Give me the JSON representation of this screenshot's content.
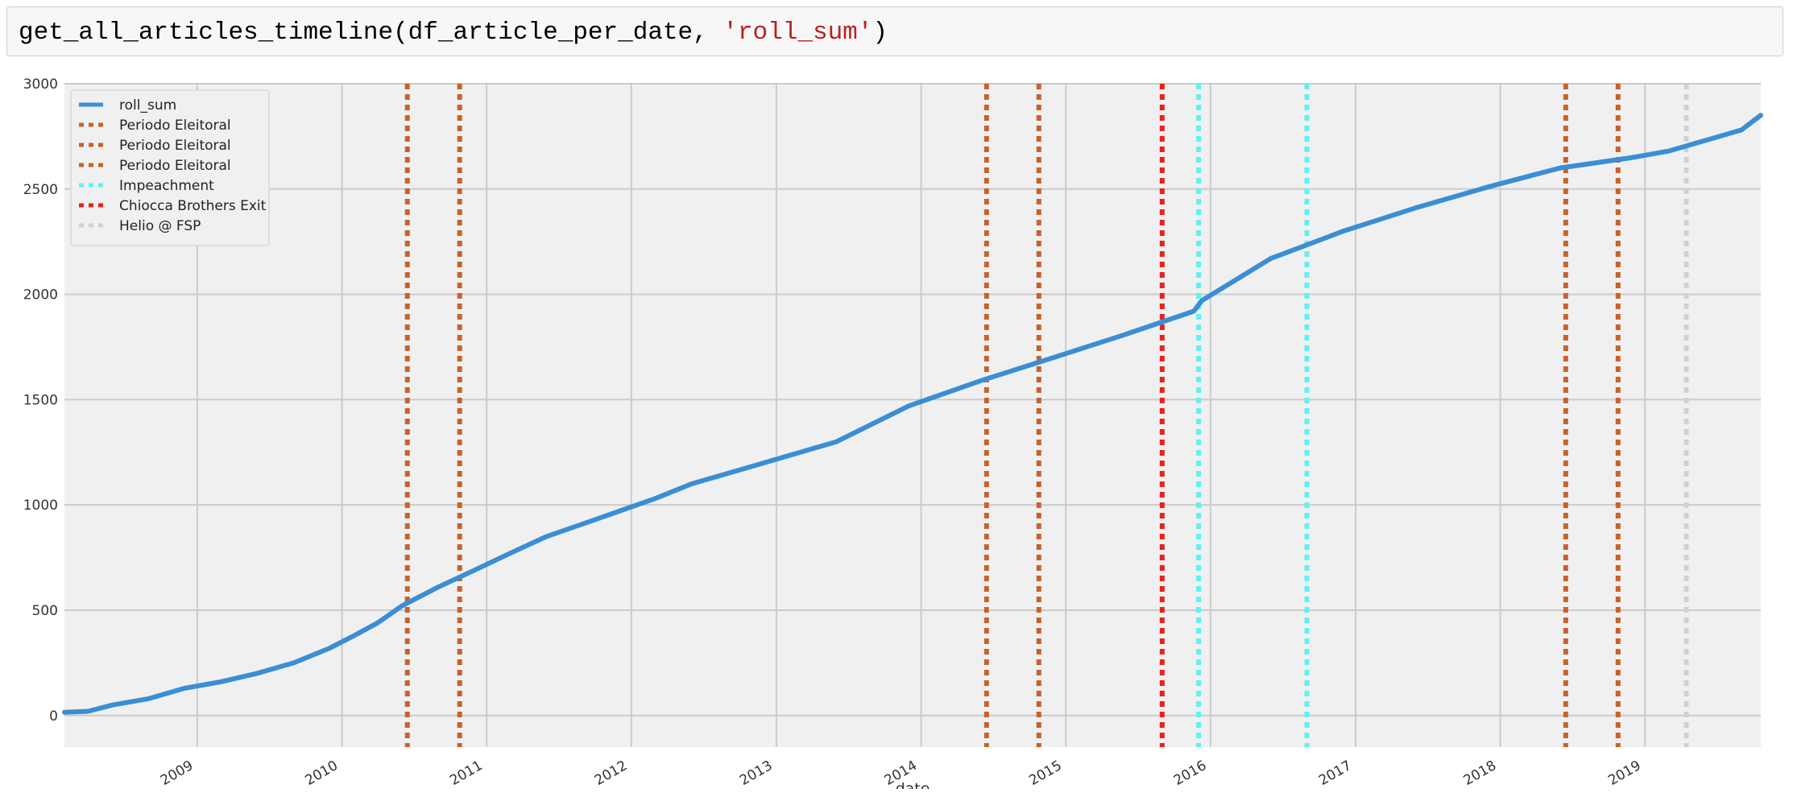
{
  "code_cell": {
    "call_prefix": "get_all_articles_timeline(df_article_per_date, ",
    "arg_string": "'roll_sum'",
    "call_suffix": ")"
  },
  "colors": {
    "plot_background": "#f0f0f0",
    "grid": "#cbcbcb",
    "series": "#3a8ed4",
    "periodo_eleitoral": "#c8622b",
    "impeachment": "#5ff2f2",
    "chiocca_brothers_exit": "#e8221c",
    "helio_fsp": "#d1d1d1"
  },
  "chart_data": {
    "type": "line",
    "title": "",
    "xlabel": "date",
    "ylabel": "",
    "xlim": [
      "2008-02-01",
      "2019-10-20"
    ],
    "ylim": [
      -150,
      3000
    ],
    "grid": true,
    "legend_position": "top-left",
    "x_ticks": [
      "2009-01-01",
      "2010-01-01",
      "2011-01-01",
      "2012-01-01",
      "2013-01-01",
      "2014-01-01",
      "2015-01-01",
      "2016-01-01",
      "2017-01-01",
      "2018-01-01",
      "2019-01-01"
    ],
    "x_tick_labels": [
      "2009",
      "2010",
      "2011",
      "2012",
      "2013",
      "2014",
      "2015",
      "2016",
      "2017",
      "2018",
      "2019"
    ],
    "y_ticks": [
      0,
      500,
      1000,
      1500,
      2000,
      2500,
      3000
    ],
    "y_tick_labels": [
      "0",
      "500",
      "1000",
      "1500",
      "2000",
      "2500",
      "3000"
    ],
    "series": [
      {
        "name": "roll_sum",
        "x": [
          "2008-02-01",
          "2008-04-01",
          "2008-06-01",
          "2008-09-01",
          "2008-12-01",
          "2009-03-01",
          "2009-06-01",
          "2009-09-01",
          "2009-12-01",
          "2010-02-01",
          "2010-04-01",
          "2010-06-01",
          "2010-09-01",
          "2010-12-01",
          "2011-03-01",
          "2011-06-01",
          "2011-09-01",
          "2011-12-01",
          "2012-03-01",
          "2012-06-01",
          "2012-09-01",
          "2012-12-01",
          "2013-06-01",
          "2013-12-01",
          "2014-06-01",
          "2014-12-01",
          "2015-06-01",
          "2015-11-20",
          "2015-12-10",
          "2016-06-01",
          "2016-12-01",
          "2017-06-01",
          "2017-12-01",
          "2018-06-01",
          "2018-12-01",
          "2019-03-01",
          "2019-06-01",
          "2019-09-01",
          "2019-10-20"
        ],
        "values": [
          15,
          20,
          50,
          80,
          130,
          160,
          200,
          250,
          320,
          380,
          440,
          520,
          610,
          690,
          770,
          850,
          910,
          970,
          1030,
          1100,
          1150,
          1200,
          1300,
          1470,
          1590,
          1700,
          1810,
          1920,
          1970,
          2170,
          2300,
          2410,
          2510,
          2600,
          2650,
          2680,
          2730,
          2780,
          2850
        ]
      }
    ],
    "markers": [
      {
        "name": "Periodo Eleitoral",
        "color": "#c8622b",
        "dates": [
          "2010-06-15",
          "2010-10-25"
        ]
      },
      {
        "name": "Periodo Eleitoral",
        "color": "#c8622b",
        "dates": [
          "2014-06-15",
          "2014-10-25"
        ]
      },
      {
        "name": "Periodo Eleitoral",
        "color": "#c8622b",
        "dates": [
          "2018-06-15",
          "2018-10-25"
        ]
      },
      {
        "name": "Impeachment",
        "color": "#5ff2f2",
        "dates": [
          "2015-12-02",
          "2016-08-31"
        ]
      },
      {
        "name": "Chiocca Brothers Exit",
        "color": "#e8221c",
        "dates": [
          "2015-09-01"
        ]
      },
      {
        "name": "Helio @ FSP",
        "color": "#d1d1d1",
        "dates": [
          "2019-04-15"
        ]
      }
    ],
    "legend": [
      {
        "label": "roll_sum",
        "color": "#3a8ed4",
        "style": "solid"
      },
      {
        "label": "Periodo Eleitoral",
        "color": "#c8622b",
        "style": "dotted"
      },
      {
        "label": "Periodo Eleitoral",
        "color": "#c8622b",
        "style": "dotted"
      },
      {
        "label": "Periodo Eleitoral",
        "color": "#c8622b",
        "style": "dotted"
      },
      {
        "label": "Impeachment",
        "color": "#5ff2f2",
        "style": "dotted"
      },
      {
        "label": "Chiocca Brothers Exit",
        "color": "#e8221c",
        "style": "dotted"
      },
      {
        "label": "Helio @ FSP",
        "color": "#d1d1d1",
        "style": "dotted"
      }
    ]
  }
}
